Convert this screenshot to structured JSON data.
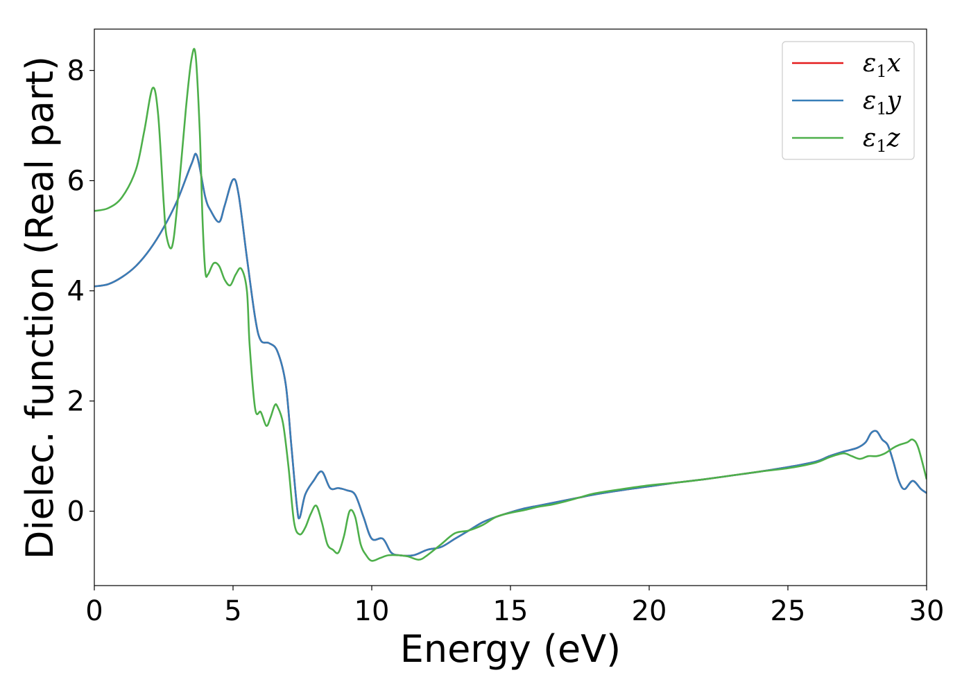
{
  "chart_data": {
    "type": "line",
    "title": "",
    "xlabel": "Energy (eV)",
    "ylabel": "Dielec. function (Real part)",
    "xlim": [
      0,
      30
    ],
    "ylim": [
      -1.35,
      8.75
    ],
    "xticks": [
      0,
      5,
      10,
      15,
      20,
      25,
      30
    ],
    "xtick_labels": [
      "0",
      "5",
      "10",
      "15",
      "20",
      "25",
      "30"
    ],
    "yticks": [
      0,
      2,
      4,
      6,
      8
    ],
    "ytick_labels": [
      "0",
      "2",
      "4",
      "6",
      "8"
    ],
    "grid": false,
    "legend_position": "top-right",
    "legend": [
      {
        "base": "ε",
        "sub": "1",
        "axis": "x",
        "color": "#e41a1c"
      },
      {
        "base": "ε",
        "sub": "1",
        "axis": "y",
        "color": "#377eb8"
      },
      {
        "base": "ε",
        "sub": "1",
        "axis": "z",
        "color": "#4daf4a"
      }
    ],
    "series": [
      {
        "name": "ε1x",
        "color": "#e41a1c",
        "x": [
          0,
          0.5,
          1.0,
          1.5,
          2.0,
          2.5,
          3.0,
          3.5,
          3.7,
          4.0,
          4.2,
          4.5,
          4.7,
          5.0,
          5.2,
          5.5,
          5.8,
          6.0,
          6.3,
          6.6,
          6.9,
          7.1,
          7.3,
          7.4,
          7.6,
          7.9,
          8.2,
          8.5,
          8.8,
          9.1,
          9.4,
          9.7,
          10.0,
          10.4,
          10.7,
          11.0,
          11.5,
          12.0,
          12.5,
          13.0,
          13.5,
          14.0,
          14.5,
          15.0,
          15.5,
          16.0,
          16.5,
          17.0,
          17.5,
          18.0,
          19.0,
          20.0,
          21.0,
          22.0,
          23.0,
          24.0,
          25.0,
          26.0,
          26.5,
          27.0,
          27.5,
          27.8,
          28.0,
          28.2,
          28.4,
          28.6,
          28.8,
          29.0,
          29.2,
          29.5,
          29.8,
          30.0
        ],
        "y": [
          4.08,
          4.12,
          4.25,
          4.45,
          4.75,
          5.15,
          5.65,
          6.3,
          6.45,
          5.7,
          5.45,
          5.25,
          5.55,
          6.02,
          5.75,
          4.6,
          3.5,
          3.1,
          3.05,
          2.9,
          2.3,
          1.2,
          0.1,
          -0.12,
          0.3,
          0.55,
          0.72,
          0.42,
          0.42,
          0.38,
          0.3,
          -0.1,
          -0.5,
          -0.5,
          -0.75,
          -0.8,
          -0.8,
          -0.7,
          -0.65,
          -0.5,
          -0.35,
          -0.2,
          -0.1,
          -0.02,
          0.05,
          0.1,
          0.15,
          0.2,
          0.25,
          0.3,
          0.38,
          0.45,
          0.52,
          0.58,
          0.65,
          0.72,
          0.8,
          0.9,
          1.0,
          1.08,
          1.15,
          1.25,
          1.42,
          1.45,
          1.3,
          1.2,
          0.9,
          0.55,
          0.4,
          0.55,
          0.4,
          0.33
        ]
      },
      {
        "name": "ε1y",
        "color": "#377eb8",
        "x": [
          0,
          0.5,
          1.0,
          1.5,
          2.0,
          2.5,
          3.0,
          3.5,
          3.7,
          4.0,
          4.2,
          4.5,
          4.7,
          5.0,
          5.2,
          5.5,
          5.8,
          6.0,
          6.3,
          6.6,
          6.9,
          7.1,
          7.3,
          7.4,
          7.6,
          7.9,
          8.2,
          8.5,
          8.8,
          9.1,
          9.4,
          9.7,
          10.0,
          10.4,
          10.7,
          11.0,
          11.5,
          12.0,
          12.5,
          13.0,
          13.5,
          14.0,
          14.5,
          15.0,
          15.5,
          16.0,
          16.5,
          17.0,
          17.5,
          18.0,
          19.0,
          20.0,
          21.0,
          22.0,
          23.0,
          24.0,
          25.0,
          26.0,
          26.5,
          27.0,
          27.5,
          27.8,
          28.0,
          28.2,
          28.4,
          28.6,
          28.8,
          29.0,
          29.2,
          29.5,
          29.8,
          30.0
        ],
        "y": [
          4.08,
          4.12,
          4.25,
          4.45,
          4.75,
          5.15,
          5.65,
          6.3,
          6.45,
          5.7,
          5.45,
          5.25,
          5.55,
          6.02,
          5.75,
          4.6,
          3.5,
          3.1,
          3.05,
          2.9,
          2.3,
          1.2,
          0.1,
          -0.12,
          0.3,
          0.55,
          0.72,
          0.42,
          0.42,
          0.38,
          0.3,
          -0.1,
          -0.5,
          -0.5,
          -0.75,
          -0.8,
          -0.8,
          -0.7,
          -0.65,
          -0.5,
          -0.35,
          -0.2,
          -0.1,
          -0.02,
          0.05,
          0.1,
          0.15,
          0.2,
          0.25,
          0.3,
          0.38,
          0.45,
          0.52,
          0.58,
          0.65,
          0.72,
          0.8,
          0.9,
          1.0,
          1.08,
          1.15,
          1.25,
          1.42,
          1.45,
          1.3,
          1.2,
          0.9,
          0.55,
          0.4,
          0.55,
          0.4,
          0.33
        ]
      },
      {
        "name": "ε1z",
        "color": "#4daf4a",
        "x": [
          0,
          0.5,
          1.0,
          1.5,
          1.8,
          2.1,
          2.3,
          2.5,
          2.6,
          2.8,
          3.0,
          3.3,
          3.5,
          3.65,
          3.8,
          3.9,
          4.0,
          4.1,
          4.3,
          4.5,
          4.7,
          4.9,
          5.1,
          5.3,
          5.5,
          5.6,
          5.8,
          6.0,
          6.2,
          6.35,
          6.5,
          6.6,
          6.8,
          7.0,
          7.2,
          7.4,
          7.6,
          7.8,
          8.0,
          8.2,
          8.4,
          8.6,
          8.8,
          9.0,
          9.2,
          9.4,
          9.6,
          9.8,
          10.0,
          10.3,
          10.6,
          11.0,
          11.3,
          11.7,
          12.0,
          12.5,
          13.0,
          13.5,
          14.0,
          14.5,
          15.0,
          15.5,
          16.0,
          16.5,
          17.0,
          17.5,
          18.0,
          19.0,
          20.0,
          21.0,
          22.0,
          23.0,
          24.0,
          25.0,
          26.0,
          26.5,
          27.0,
          27.3,
          27.6,
          27.9,
          28.2,
          28.5,
          28.8,
          29.0,
          29.3,
          29.5,
          29.7,
          30.0
        ],
        "y": [
          5.45,
          5.5,
          5.7,
          6.2,
          6.9,
          7.68,
          7.2,
          5.6,
          5.0,
          4.8,
          5.6,
          7.3,
          8.2,
          8.28,
          6.9,
          5.3,
          4.35,
          4.3,
          4.5,
          4.45,
          4.2,
          4.1,
          4.3,
          4.4,
          4.0,
          3.0,
          1.85,
          1.8,
          1.55,
          1.7,
          1.92,
          1.9,
          1.6,
          0.8,
          -0.2,
          -0.42,
          -0.3,
          -0.05,
          0.1,
          -0.2,
          -0.6,
          -0.7,
          -0.75,
          -0.45,
          0.0,
          -0.1,
          -0.6,
          -0.8,
          -0.9,
          -0.85,
          -0.8,
          -0.8,
          -0.82,
          -0.88,
          -0.8,
          -0.6,
          -0.4,
          -0.35,
          -0.25,
          -0.1,
          -0.03,
          0.02,
          0.08,
          0.12,
          0.18,
          0.25,
          0.32,
          0.4,
          0.47,
          0.52,
          0.58,
          0.65,
          0.72,
          0.78,
          0.88,
          0.98,
          1.05,
          1.0,
          0.95,
          1.0,
          1.0,
          1.05,
          1.15,
          1.2,
          1.25,
          1.3,
          1.15,
          0.58
        ]
      }
    ]
  }
}
